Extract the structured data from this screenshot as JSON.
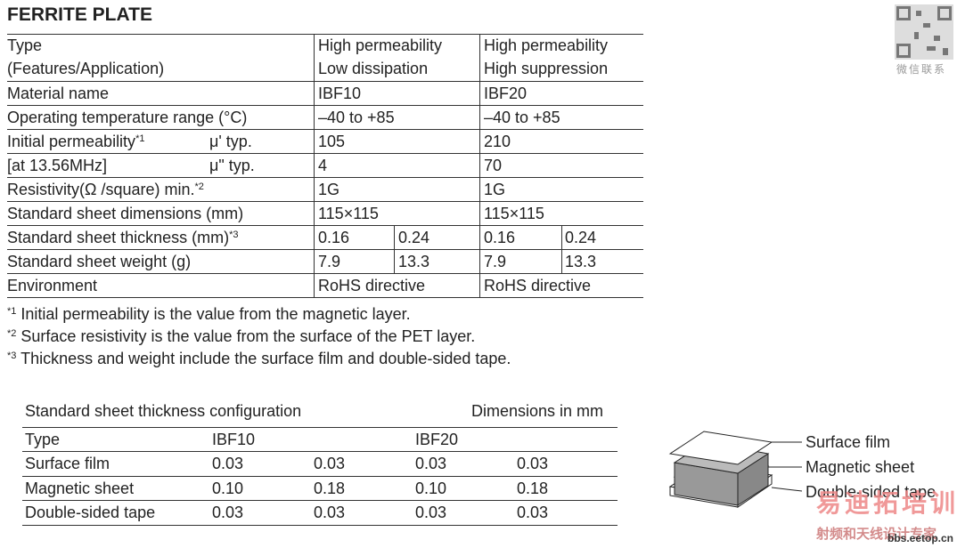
{
  "title": "FERRITE PLATE",
  "spec_table": {
    "header": [
      [
        "Type",
        "(Features/Application)"
      ],
      [
        "High permeability",
        "Low dissipation"
      ],
      [
        "High permeability",
        "High suppression"
      ]
    ],
    "rows": [
      [
        "Material name",
        "IBF10",
        "IBF20"
      ],
      [
        "Operating temperature range (°C)",
        "–40 to +85",
        "–40 to +85"
      ],
      [
        {
          "text": "Initial permeability",
          "sup": "*1"
        },
        "μ'  typ.",
        "105",
        "210"
      ],
      [
        "[at 13.56MHz]",
        "μ\"  typ.",
        "4",
        "70"
      ],
      [
        {
          "text": "Resistivity(Ω /square) min.",
          "sup": "*2"
        },
        "1G",
        "1G"
      ],
      [
        "Standard sheet dimensions (mm)",
        "115×115",
        "115×115"
      ],
      [
        {
          "text": "Standard sheet thickness (mm)",
          "sup": "*3"
        },
        "0.16",
        "0.24",
        "0.16",
        "0.24"
      ],
      [
        "Standard sheet weight (g)",
        "7.9",
        "13.3",
        "7.9",
        "13.3"
      ],
      [
        "Environment",
        "RoHS directive",
        "RoHS directive"
      ]
    ]
  },
  "footnotes": [
    {
      "mark": "*1",
      "text": "Initial permeability is the value from the magnetic layer."
    },
    {
      "mark": "*2",
      "text": "Surface resistivity is the value from the surface of the PET layer."
    },
    {
      "mark": "*3",
      "text": "Thickness and weight include the surface film and double-sided tape."
    }
  ],
  "thickness_table": {
    "caption": "Standard sheet thickness configuration",
    "units": "Dimensions in mm",
    "header": [
      "Type",
      "IBF10",
      "IBF20"
    ],
    "rows": [
      [
        "Surface film",
        "0.03",
        "0.03",
        "0.03",
        "0.03"
      ],
      [
        "Magnetic sheet",
        "0.10",
        "0.18",
        "0.10",
        "0.18"
      ],
      [
        "Double-sided tape",
        "0.03",
        "0.03",
        "0.03",
        "0.03"
      ]
    ]
  },
  "diagram": {
    "labels": [
      "Surface film",
      "Magnetic sheet",
      "Double-sided tape"
    ]
  },
  "watermarks": [
    "微信联系",
    "易迪拓培训",
    "射频和天线设计专家",
    "bbs.eetop.cn"
  ]
}
